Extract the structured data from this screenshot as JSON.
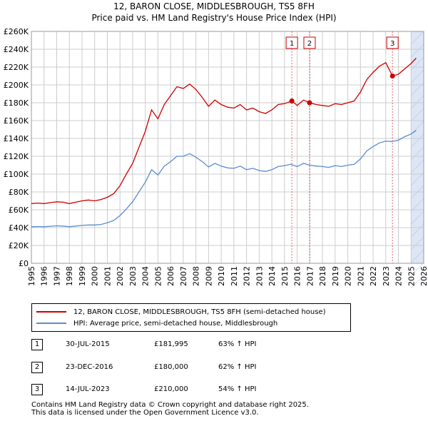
{
  "title": {
    "line1": "12, BARON CLOSE, MIDDLESBROUGH, TS5 8FH",
    "line2": "Price paid vs. HM Land Registry's House Price Index (HPI)"
  },
  "colors": {
    "property": "#cc0000",
    "hpi": "#5b8ccc",
    "grid": "#cccccc",
    "highlight": "#dce6f5",
    "marker_line": "#cc0000"
  },
  "chart_data": {
    "type": "line",
    "ylim": [
      0,
      260000
    ],
    "xlim": [
      1995,
      2026
    ],
    "yticks": [
      {
        "value": 0,
        "label": "£0"
      },
      {
        "value": 20000,
        "label": "£20K"
      },
      {
        "value": 40000,
        "label": "£40K"
      },
      {
        "value": 60000,
        "label": "£60K"
      },
      {
        "value": 80000,
        "label": "£80K"
      },
      {
        "value": 100000,
        "label": "£100K"
      },
      {
        "value": 120000,
        "label": "£120K"
      },
      {
        "value": 140000,
        "label": "£140K"
      },
      {
        "value": 160000,
        "label": "£160K"
      },
      {
        "value": 180000,
        "label": "£180K"
      },
      {
        "value": 200000,
        "label": "£200K"
      },
      {
        "value": 220000,
        "label": "£220K"
      },
      {
        "value": 240000,
        "label": "£240K"
      },
      {
        "value": 260000,
        "label": "£260K"
      }
    ],
    "xticks": [
      "1995",
      "1996",
      "1997",
      "1998",
      "1999",
      "2000",
      "2001",
      "2002",
      "2003",
      "2004",
      "2005",
      "2006",
      "2007",
      "2008",
      "2009",
      "2010",
      "2011",
      "2012",
      "2013",
      "2014",
      "2015",
      "2016",
      "2017",
      "2018",
      "2019",
      "2020",
      "2021",
      "2022",
      "2023",
      "2024",
      "2025",
      "2026"
    ],
    "highlight_range": [
      2025.0,
      2026.0
    ],
    "series": [
      {
        "name": "12, BARON CLOSE, MIDDLESBROUGH, TS5 8FH (semi-detached house)",
        "color": "#cc0000",
        "x": [
          1995.0,
          1995.5,
          1996.0,
          1996.5,
          1997.0,
          1997.5,
          1998.0,
          1998.5,
          1999.0,
          1999.5,
          2000.0,
          2000.5,
          2001.0,
          2001.5,
          2002.0,
          2002.5,
          2003.0,
          2003.5,
          2004.0,
          2004.5,
          2005.0,
          2005.5,
          2006.0,
          2006.5,
          2007.0,
          2007.5,
          2008.0,
          2008.5,
          2009.0,
          2009.5,
          2010.0,
          2010.5,
          2011.0,
          2011.5,
          2012.0,
          2012.5,
          2013.0,
          2013.5,
          2014.0,
          2014.5,
          2015.0,
          2015.58,
          2016.0,
          2016.5,
          2016.98,
          2017.5,
          2018.0,
          2018.5,
          2019.0,
          2019.5,
          2020.0,
          2020.5,
          2021.0,
          2021.5,
          2022.0,
          2022.5,
          2023.0,
          2023.53,
          2024.0,
          2024.5,
          2025.0,
          2025.4
        ],
        "values": [
          67000,
          67500,
          67000,
          68000,
          69000,
          68500,
          67000,
          68500,
          70000,
          71000,
          70000,
          71500,
          74000,
          78000,
          87000,
          100000,
          112000,
          130000,
          148000,
          172000,
          162000,
          178000,
          188000,
          198000,
          196000,
          201000,
          195000,
          186000,
          176000,
          183000,
          178000,
          175000,
          174000,
          178000,
          172000,
          174000,
          170000,
          168000,
          172000,
          178000,
          179000,
          181995,
          177000,
          183000,
          180000,
          178000,
          177000,
          176000,
          179000,
          178000,
          180000,
          182000,
          192000,
          206000,
          214000,
          221000,
          225000,
          210000,
          212000,
          218000,
          224000,
          230000
        ]
      },
      {
        "name": "HPI: Average price, semi-detached house, Middlesbrough",
        "color": "#5b8ccc",
        "x": [
          1995.0,
          1995.5,
          1996.0,
          1996.5,
          1997.0,
          1997.5,
          1998.0,
          1998.5,
          1999.0,
          1999.5,
          2000.0,
          2000.5,
          2001.0,
          2001.5,
          2002.0,
          2002.5,
          2003.0,
          2003.5,
          2004.0,
          2004.5,
          2005.0,
          2005.5,
          2006.0,
          2006.5,
          2007.0,
          2007.5,
          2008.0,
          2008.5,
          2009.0,
          2009.5,
          2010.0,
          2010.5,
          2011.0,
          2011.5,
          2012.0,
          2012.5,
          2013.0,
          2013.5,
          2014.0,
          2014.5,
          2015.0,
          2015.5,
          2016.0,
          2016.5,
          2017.0,
          2017.5,
          2018.0,
          2018.5,
          2019.0,
          2019.5,
          2020.0,
          2020.5,
          2021.0,
          2021.5,
          2022.0,
          2022.5,
          2023.0,
          2023.5,
          2024.0,
          2024.5,
          2025.0,
          2025.4
        ],
        "values": [
          41000,
          41200,
          41000,
          41500,
          42000,
          41800,
          41000,
          41800,
          42500,
          43000,
          43000,
          43500,
          45500,
          48000,
          53500,
          61000,
          69000,
          80000,
          91000,
          105000,
          99000,
          109000,
          114000,
          120000,
          120000,
          123000,
          119000,
          114000,
          108000,
          112000,
          109000,
          107000,
          106500,
          109000,
          105000,
          106500,
          104000,
          103000,
          105000,
          108500,
          109500,
          111000,
          108500,
          112000,
          110000,
          109000,
          108500,
          107500,
          109500,
          108500,
          110000,
          111000,
          117000,
          126000,
          131000,
          135000,
          137000,
          136500,
          138000,
          142000,
          145000,
          149000
        ]
      }
    ],
    "sales": [
      {
        "label": "1",
        "date": "30-JUL-2015",
        "x": 2015.58,
        "price_value": 181995,
        "price": "£181,995",
        "hpi": "63% ↑ HPI"
      },
      {
        "label": "2",
        "date": "23-DEC-2016",
        "x": 2016.98,
        "price_value": 180000,
        "price": "£180,000",
        "hpi": "62% ↑ HPI"
      },
      {
        "label": "3",
        "date": "14-JUL-2023",
        "x": 2023.53,
        "price_value": 210000,
        "price": "£210,000",
        "hpi": "54% ↑ HPI"
      }
    ]
  },
  "legend": {
    "property": "12, BARON CLOSE, MIDDLESBROUGH, TS5 8FH (semi-detached house)",
    "hpi": "HPI: Average price, semi-detached house, Middlesbrough"
  },
  "footer": {
    "line1": "Contains HM Land Registry data © Crown copyright and database right 2025.",
    "line2": "This data is licensed under the Open Government Licence v3.0."
  }
}
